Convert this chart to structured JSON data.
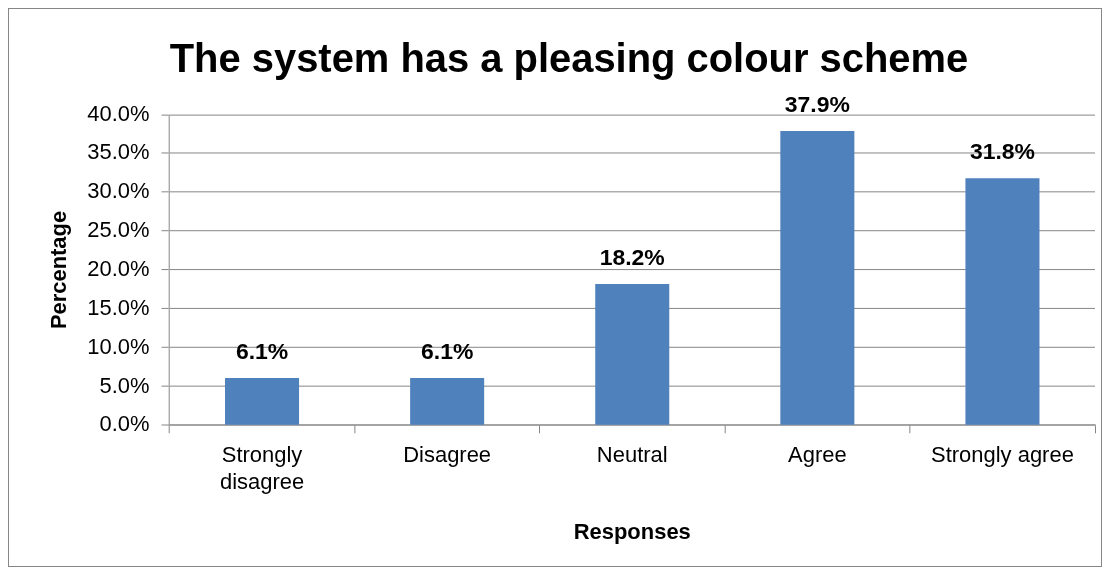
{
  "chart_data": {
    "type": "bar",
    "title": "The system has a pleasing colour scheme",
    "xlabel": "Responses",
    "ylabel": "Percentage",
    "categories": [
      "Strongly disagree",
      "Disagree",
      "Neutral",
      "Agree",
      "Strongly agree"
    ],
    "values": [
      6.1,
      6.1,
      18.2,
      37.9,
      31.8
    ],
    "color": "#4f81bd",
    "value_labels": [
      "6.1%",
      "6.1%",
      "18.2%",
      "37.9%",
      "31.8%"
    ],
    "ylim": [
      0,
      40
    ],
    "yticks": [
      {
        "value": 0,
        "label": "0.0%"
      },
      {
        "value": 5,
        "label": "5.0%"
      },
      {
        "value": 10,
        "label": "10.0%"
      },
      {
        "value": 15,
        "label": "15.0%"
      },
      {
        "value": 20,
        "label": "20.0%"
      },
      {
        "value": 25,
        "label": "25.0%"
      },
      {
        "value": 30,
        "label": "30.0%"
      },
      {
        "value": 35,
        "label": "35.0%"
      },
      {
        "value": 40,
        "label": "40.0%"
      }
    ],
    "grid": "y",
    "legend": false
  }
}
